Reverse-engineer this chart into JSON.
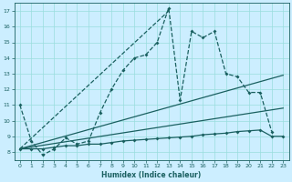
{
  "xlabel": "Humidex (Indice chaleur)",
  "bg_color": "#cceeff",
  "grid_color": "#99dddd",
  "line_color": "#1a6060",
  "xlim": [
    -0.5,
    23.5
  ],
  "ylim": [
    7.5,
    17.5
  ],
  "xticks": [
    0,
    1,
    2,
    3,
    4,
    5,
    6,
    7,
    8,
    9,
    10,
    11,
    12,
    13,
    14,
    15,
    16,
    17,
    18,
    19,
    20,
    21,
    22,
    23
  ],
  "yticks": [
    8,
    9,
    10,
    11,
    12,
    13,
    14,
    15,
    16,
    17
  ],
  "curve1_x": [
    0,
    1,
    2,
    3,
    4,
    5,
    6,
    7,
    8,
    9,
    10,
    11,
    12,
    13,
    14,
    15,
    16,
    17,
    18,
    19,
    20,
    21,
    22
  ],
  "curve1_y": [
    11.0,
    8.7,
    7.8,
    8.2,
    8.9,
    8.5,
    8.7,
    10.5,
    12.0,
    13.2,
    14.0,
    14.2,
    15.0,
    17.2,
    11.3,
    15.7,
    15.3,
    15.7,
    13.0,
    12.8,
    11.8,
    11.8,
    9.3
  ],
  "line2_x": [
    0,
    13
  ],
  "line2_y": [
    8.2,
    17.0
  ],
  "curve3_x": [
    0,
    1,
    2,
    3,
    4,
    5,
    6,
    7,
    8,
    9,
    10,
    11,
    12,
    13,
    14,
    15,
    16,
    17,
    18,
    19,
    20,
    21,
    22,
    23
  ],
  "curve3_y": [
    8.2,
    8.2,
    8.2,
    8.3,
    8.4,
    8.4,
    8.5,
    8.5,
    8.6,
    8.7,
    8.75,
    8.8,
    8.85,
    8.9,
    8.95,
    9.0,
    9.1,
    9.15,
    9.2,
    9.3,
    9.35,
    9.4,
    9.0,
    9.0
  ],
  "line4_x": [
    0,
    23
  ],
  "line4_y": [
    8.2,
    12.9
  ],
  "line5_x": [
    0,
    23
  ],
  "line5_y": [
    8.2,
    10.8
  ]
}
